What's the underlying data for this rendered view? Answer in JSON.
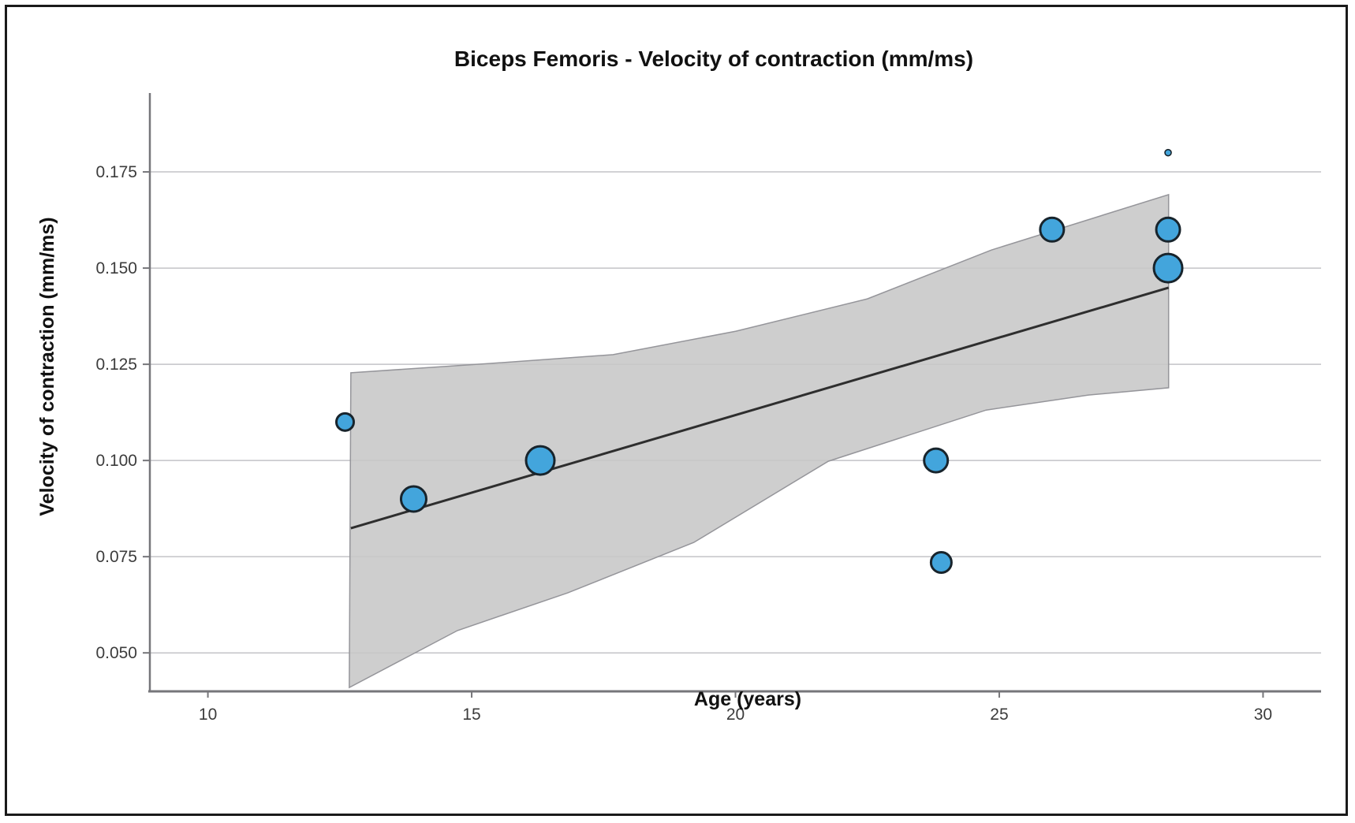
{
  "figure": {
    "background": "#ffffff",
    "border_color": "#1a1a1a"
  },
  "chart_data": {
    "type": "scatter",
    "title": "Biceps Femoris - Velocity of contraction (mm/ms)",
    "xlabel": "Age (years)",
    "ylabel": "Velocity of contraction (mm/ms)",
    "xlim": [
      8.9,
      31.1
    ],
    "ylim": [
      0.04,
      0.1955
    ],
    "x_ticks": [
      10,
      15,
      20,
      25,
      30
    ],
    "x_tick_labels": [
      "10",
      "15",
      "20",
      "25",
      "30"
    ],
    "y_ticks": [
      0.05,
      0.075,
      0.1,
      0.125,
      0.15,
      0.175
    ],
    "y_tick_labels": [
      "0.050",
      "0.075",
      "0.100",
      "0.125",
      "0.150",
      "0.175"
    ],
    "grid": "horizontal-only",
    "legend": "none",
    "points": [
      {
        "age": 12.6,
        "velocity": 0.11,
        "size": 11
      },
      {
        "age": 13.9,
        "velocity": 0.09,
        "size": 16
      },
      {
        "age": 16.3,
        "velocity": 0.1,
        "size": 18
      },
      {
        "age": 23.8,
        "velocity": 0.1,
        "size": 15
      },
      {
        "age": 23.9,
        "velocity": 0.0735,
        "size": 13
      },
      {
        "age": 26.0,
        "velocity": 0.16,
        "size": 15
      },
      {
        "age": 28.2,
        "velocity": 0.16,
        "size": 15
      },
      {
        "age": 28.2,
        "velocity": 0.15,
        "size": 18
      },
      {
        "age": 28.2,
        "velocity": 0.18,
        "size": 4
      }
    ],
    "regression_line": {
      "x": [
        12.71,
        28.21
      ],
      "y": [
        0.0824,
        0.1449
      ]
    },
    "confidence_band": {
      "upper": [
        [
          12.71,
          0.1228
        ],
        [
          15.33,
          0.1252
        ],
        [
          17.68,
          0.1275
        ],
        [
          20.01,
          0.1336
        ],
        [
          22.5,
          0.142
        ],
        [
          24.85,
          0.1547
        ],
        [
          28.21,
          0.1691
        ]
      ],
      "lower": [
        [
          12.68,
          0.041
        ],
        [
          14.73,
          0.0558
        ],
        [
          16.82,
          0.0656
        ],
        [
          19.21,
          0.0787
        ],
        [
          21.76,
          0.0998
        ],
        [
          24.75,
          0.1131
        ],
        [
          26.69,
          0.117
        ],
        [
          28.21,
          0.1189
        ]
      ]
    },
    "colors": {
      "point_fill": "#43a5dc",
      "point_stroke": "#18242c",
      "band_fill": "#c7c7c7",
      "band_stroke": "#95959a",
      "regression_line": "#2e2e2e",
      "gridline": "#c3c3c7",
      "axis_line": "#76767a",
      "tick_label": "#3c3c3c",
      "label_text": "#111111"
    }
  }
}
